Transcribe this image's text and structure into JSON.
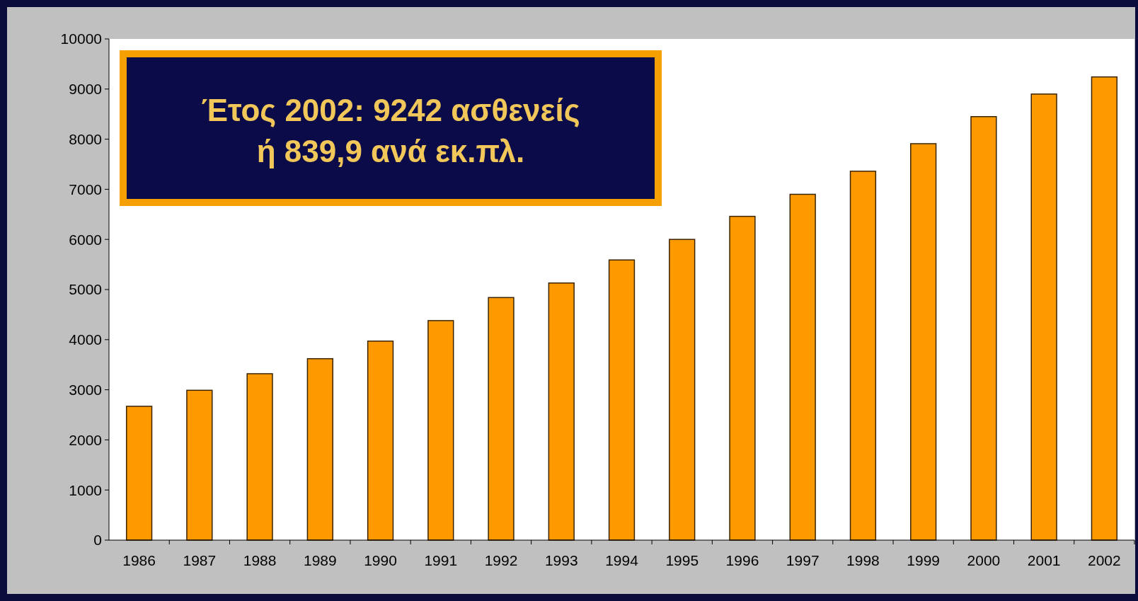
{
  "chart_data": {
    "type": "bar",
    "categories": [
      "1986",
      "1987",
      "1988",
      "1989",
      "1990",
      "1991",
      "1992",
      "1993",
      "1994",
      "1995",
      "1996",
      "1997",
      "1998",
      "1999",
      "2000",
      "2001",
      "2002"
    ],
    "values": [
      2670,
      2990,
      3320,
      3620,
      3970,
      4380,
      4840,
      5130,
      5590,
      6000,
      6460,
      6900,
      7360,
      7910,
      8450,
      8900,
      9242
    ],
    "color": "#ff9900",
    "ylim": [
      0,
      10000
    ],
    "yticks": [
      0,
      1000,
      2000,
      3000,
      4000,
      5000,
      6000,
      7000,
      8000,
      9000,
      10000
    ],
    "annotations": [
      "Έτος 2002: 9242 ασθενείς\nή 839,9  ανά εκ.πλ."
    ],
    "grid": false
  }
}
